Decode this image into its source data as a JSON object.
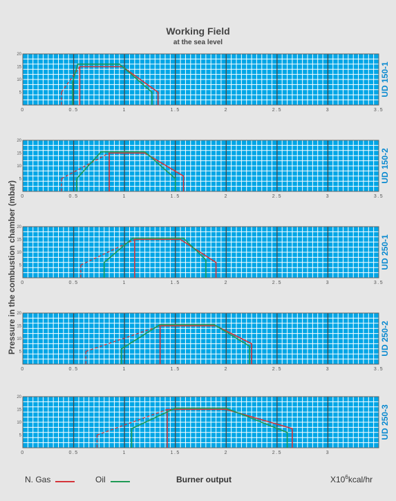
{
  "title": "Working Field",
  "subtitle": "at the sea level",
  "ylabel": "Pressure in the combustion chamber (mbar)",
  "xlabel": "Burner output",
  "unit_prefix": "X10",
  "unit_exp": "6",
  "unit_suffix": "kcal/hr",
  "legend": [
    {
      "label": "N. Gas",
      "color": "#d4343a"
    },
    {
      "label": "Oil",
      "color": "#1e9a55"
    }
  ],
  "colors": {
    "grid_bg": "#00a6e6",
    "grid_line": "#ffffff",
    "major_line": "#444444",
    "panel_label": "#0a8ad0"
  },
  "chart_data": [
    {
      "type": "line",
      "name": "UD 150-1",
      "xlim": [
        0,
        3.5
      ],
      "ylim": [
        0,
        20
      ],
      "x_ticks": [
        "0",
        "0.5",
        "1",
        "1.5",
        "2",
        "2.5",
        "3",
        "3.5"
      ],
      "y_ticks": [
        "5",
        "10",
        "15",
        "20"
      ],
      "series": [
        {
          "name": "N. Gas",
          "points": [
            [
              0.56,
              0
            ],
            [
              0.56,
              15
            ],
            [
              0.98,
              15
            ],
            [
              1.33,
              5
            ],
            [
              1.33,
              0
            ]
          ],
          "dashed_from": [
            [
              0.38,
              5
            ],
            [
              0.56,
              15
            ]
          ]
        },
        {
          "name": "Oil",
          "points": [
            [
              0.49,
              0
            ],
            [
              0.49,
              9
            ],
            [
              0.54,
              16
            ],
            [
              0.95,
              16
            ],
            [
              1.27,
              5
            ],
            [
              1.27,
              0
            ]
          ]
        }
      ]
    },
    {
      "type": "line",
      "name": "UD 150-2",
      "xlim": [
        0,
        3.5
      ],
      "ylim": [
        0,
        20
      ],
      "x_ticks": [
        "0",
        "0.5",
        "1",
        "1.5",
        "2",
        "2.5",
        "3",
        "3.5"
      ],
      "y_ticks": [
        "5",
        "10",
        "15",
        "20"
      ],
      "series": [
        {
          "name": "N. Gas",
          "points": [
            [
              0.85,
              0
            ],
            [
              0.85,
              15
            ],
            [
              1.2,
              15
            ],
            [
              1.58,
              6
            ],
            [
              1.58,
              0
            ]
          ],
          "dashed_from": [
            [
              0.38,
              5
            ],
            [
              0.85,
              15
            ]
          ]
        },
        {
          "name": "Oil",
          "points": [
            [
              0.53,
              0
            ],
            [
              0.53,
              5
            ],
            [
              0.77,
              15.5
            ],
            [
              1.2,
              15.5
            ],
            [
              1.5,
              5
            ],
            [
              1.5,
              0
            ]
          ]
        }
      ]
    },
    {
      "type": "line",
      "name": "UD 250-1",
      "xlim": [
        0,
        3.5
      ],
      "ylim": [
        0,
        20
      ],
      "x_ticks": [
        "0",
        "0.5",
        "1",
        "1.5",
        "2",
        "2.5",
        "3",
        "3.5"
      ],
      "y_ticks": [
        "5",
        "10",
        "15",
        "20"
      ],
      "series": [
        {
          "name": "N. Gas",
          "points": [
            [
              1.1,
              0
            ],
            [
              1.1,
              15
            ],
            [
              1.55,
              15
            ],
            [
              1.9,
              6
            ],
            [
              1.9,
              0
            ]
          ],
          "dashed_from": [
            [
              0.57,
              5
            ],
            [
              1.1,
              15
            ]
          ]
        },
        {
          "name": "Oil",
          "points": [
            [
              0.8,
              0
            ],
            [
              0.8,
              6
            ],
            [
              1.08,
              15.5
            ],
            [
              1.58,
              15.5
            ],
            [
              1.8,
              7
            ],
            [
              1.8,
              0
            ]
          ]
        }
      ]
    },
    {
      "type": "line",
      "name": "UD 250-2",
      "xlim": [
        0,
        3.5
      ],
      "ylim": [
        0,
        20
      ],
      "x_ticks": [
        "0",
        "0.5",
        "1",
        "1.5",
        "2",
        "2.5",
        "3",
        "3.5"
      ],
      "y_ticks": [
        "5",
        "10",
        "15",
        "20"
      ],
      "series": [
        {
          "name": "N. Gas",
          "points": [
            [
              1.35,
              0
            ],
            [
              1.35,
              15
            ],
            [
              1.9,
              15
            ],
            [
              2.25,
              8
            ],
            [
              2.25,
              0
            ]
          ],
          "dashed_from": [
            [
              0.62,
              5
            ],
            [
              1.35,
              15
            ]
          ]
        },
        {
          "name": "Oil",
          "points": [
            [
              0.97,
              0
            ],
            [
              0.97,
              6
            ],
            [
              1.35,
              15.5
            ],
            [
              1.88,
              15.5
            ],
            [
              2.23,
              7
            ],
            [
              2.23,
              0
            ]
          ]
        }
      ]
    },
    {
      "type": "line",
      "name": "UD 250-3",
      "xlim": [
        0,
        3.5
      ],
      "ylim": [
        0,
        20
      ],
      "x_ticks": [
        "0",
        "0.5",
        "1",
        "1.5",
        "2",
        "2.5",
        "3",
        ""
      ],
      "y_ticks": [
        "5",
        "10",
        "15",
        "20"
      ],
      "series": [
        {
          "name": "N. Gas",
          "points": [
            [
              1.42,
              0
            ],
            [
              1.42,
              15
            ],
            [
              2.0,
              15
            ],
            [
              2.65,
              7.5
            ],
            [
              2.65,
              0
            ]
          ],
          "dashed_from": [
            [
              0.73,
              5
            ],
            [
              1.42,
              15
            ]
          ]
        },
        {
          "name": "Oil",
          "points": [
            [
              1.07,
              0
            ],
            [
              1.07,
              7.5
            ],
            [
              1.5,
              15.5
            ],
            [
              2.0,
              15.5
            ],
            [
              2.6,
              6
            ],
            [
              2.6,
              0
            ]
          ]
        }
      ]
    }
  ]
}
